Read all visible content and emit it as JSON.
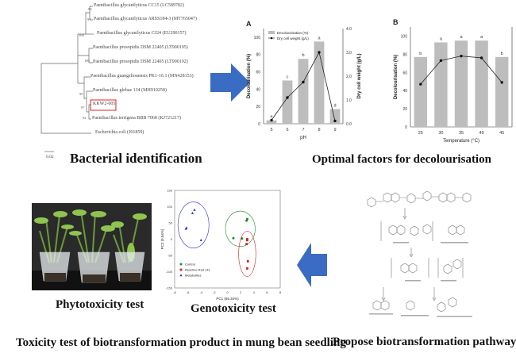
{
  "tree": {
    "taxa": [
      "Paenibacillus glycanilyticus CC15 (LC589782)",
      "Paenibacillus glycanilyticus ARSS184-3 (MT765047)",
      "Paenibacillus glycanilyticus CJ24 (EU290157)",
      "Paenibacillus prosopidis DSM 22405 (LT900195)",
      "Paenibacillus prosopidis DSM 22405 (LT900192)",
      "Paenibacillus guangzhouensis PK1-16.1 (MN428153)",
      "Paenibacillus glebae 134 (MH910258)",
      "KKW2-005",
      "Paenibacillus terrigena BBB 7068 (KJ721217)",
      "Escherichia coli (J01859)"
    ],
    "bootstrap": [
      "99",
      "97",
      "100",
      "100",
      "99",
      "97",
      "92"
    ],
    "scale_label": "0.02",
    "highlight_color": "#e02020"
  },
  "captions": {
    "bacterial": "Bacterial identification",
    "optimal": "Optimal factors  for decolourisation",
    "phyto": "Phytotoxicity test",
    "geno": "Genotoxicity test",
    "toxicity": "Toxicity test of biotransformation product  in mung bean seedling",
    "pathway": "Propose biotransformation pathway"
  },
  "arrow_color": "#3a6cc4",
  "chart_data": [
    {
      "type": "bar",
      "panel": "A",
      "categories": [
        "5",
        "6",
        "7",
        "8",
        "9"
      ],
      "xlabel": "pH",
      "ylabel": "Decolourisation (%)",
      "y2label": "Dry cell weight (g/L)",
      "ylim": [
        0,
        110
      ],
      "y2lim": [
        0,
        4.0
      ],
      "yticks": [
        "0",
        "20",
        "40",
        "60",
        "80",
        "100"
      ],
      "y2ticks": [
        "0.0",
        "1.0",
        "2.0",
        "3.0",
        "4.0"
      ],
      "legend": [
        "Decolourisation (%)",
        "Dry cell weight (g/L)"
      ],
      "legend_position": "top-left",
      "series": [
        {
          "name": "Decolourisation (%)",
          "type": "bar",
          "values": [
            4,
            50,
            75,
            95,
            17
          ],
          "letters": [
            "e",
            "c",
            "b",
            "a",
            "d"
          ]
        },
        {
          "name": "Dry cell weight (g/L)",
          "type": "line",
          "axis": "right",
          "values": [
            0.15,
            1.1,
            1.75,
            3.0,
            0.12
          ]
        }
      ]
    },
    {
      "type": "bar",
      "panel": "B",
      "categories": [
        "25",
        "30",
        "35",
        "40",
        "45"
      ],
      "xlabel": "Temperature (°C)",
      "ylabel": "Decolourisation (%)",
      "ylim": [
        0,
        110
      ],
      "yticks": [
        "0",
        "20",
        "40",
        "60",
        "80",
        "100"
      ],
      "series": [
        {
          "type": "bar",
          "values": [
            77,
            93,
            95,
            95,
            77
          ],
          "letters": [
            "b",
            "a",
            "a",
            "a",
            "b"
          ]
        },
        {
          "type": "line",
          "values": [
            47,
            73,
            78,
            76,
            49
          ]
        }
      ]
    },
    {
      "type": "scatter",
      "xlabel": "PC1 (65.34%)",
      "ylabel": "PC2 (9.04%)",
      "xlim": [
        -8,
        8
      ],
      "ylim": [
        -150,
        150
      ],
      "xticks": [
        "-8",
        "-6",
        "-4",
        "-2",
        "0",
        "2",
        "4",
        "6",
        "8"
      ],
      "yticks": [
        "-150",
        "-100",
        "-50",
        "0",
        "50",
        "100",
        "150"
      ],
      "legend_position": "bottom-left",
      "series": [
        {
          "name": "Control",
          "color": "#1a8a2a",
          "marker": "circle",
          "points": [
            [
              3.0,
              62
            ],
            [
              2.9,
              57
            ],
            [
              0.9,
              3
            ],
            [
              2.2,
              2
            ]
          ]
        },
        {
          "name": "Reactive Red 141",
          "color": "#d42020",
          "marker": "square",
          "points": [
            [
              3.0,
              0
            ],
            [
              3.0,
              -3
            ],
            [
              2.9,
              -15
            ],
            [
              3.1,
              -68
            ],
            [
              3.0,
              -90
            ]
          ]
        },
        {
          "name": "Metabolites",
          "color": "#2a2ad4",
          "marker": "triangle",
          "points": [
            [
              -5.0,
              90
            ],
            [
              -5.3,
              80
            ],
            [
              -6.2,
              35
            ],
            [
              -6.3,
              32
            ],
            [
              -4.0,
              -3
            ]
          ]
        }
      ]
    }
  ]
}
